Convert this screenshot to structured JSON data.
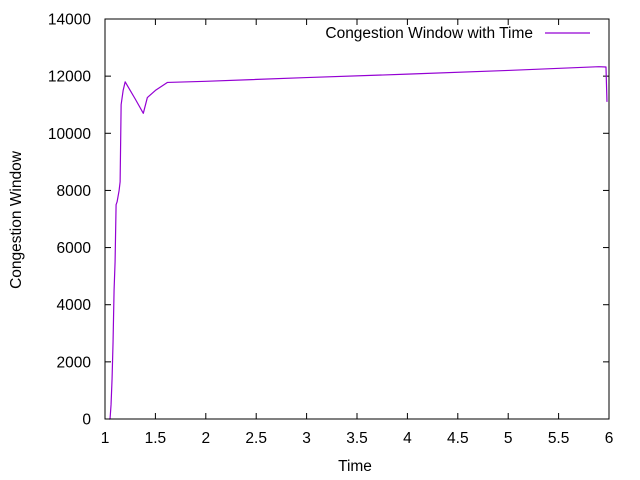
{
  "chart_data": {
    "type": "line",
    "title": "",
    "xlabel": "Time",
    "ylabel": "Congestion Window",
    "xlim": [
      1,
      6
    ],
    "ylim": [
      0,
      14000
    ],
    "xticks": [
      1,
      1.5,
      2,
      2.5,
      3,
      3.5,
      4,
      4.5,
      5,
      5.5,
      6
    ],
    "xtick_labels": [
      "1",
      "1.5",
      "2",
      "2.5",
      "3",
      "3.5",
      "4",
      "4.5",
      "5",
      "5.5",
      "6"
    ],
    "yticks": [
      0,
      2000,
      4000,
      6000,
      8000,
      10000,
      12000,
      14000
    ],
    "ytick_labels": [
      "0",
      "2000",
      "4000",
      "6000",
      "8000",
      "10000",
      "12000",
      "14000"
    ],
    "grid": false,
    "legend_position": "top-right",
    "series": [
      {
        "name": "Congestion Window with Time",
        "color": "#9400d3",
        "x": [
          1.04,
          1.05,
          1.06,
          1.07,
          1.08,
          1.09,
          1.1,
          1.11,
          1.12,
          1.14,
          1.15,
          1.16,
          1.18,
          1.2,
          1.25,
          1.3,
          1.38,
          1.42,
          1.5,
          1.62,
          2.0,
          3.0,
          4.0,
          5.0,
          5.9,
          5.97,
          5.98
        ],
        "y": [
          0,
          0,
          500,
          1400,
          2700,
          4500,
          5500,
          7500,
          7600,
          8000,
          8300,
          11000,
          11500,
          11800,
          11500,
          11200,
          10700,
          11250,
          11500,
          11780,
          11820,
          11950,
          12070,
          12200,
          12330,
          12320,
          11100
        ]
      }
    ]
  }
}
